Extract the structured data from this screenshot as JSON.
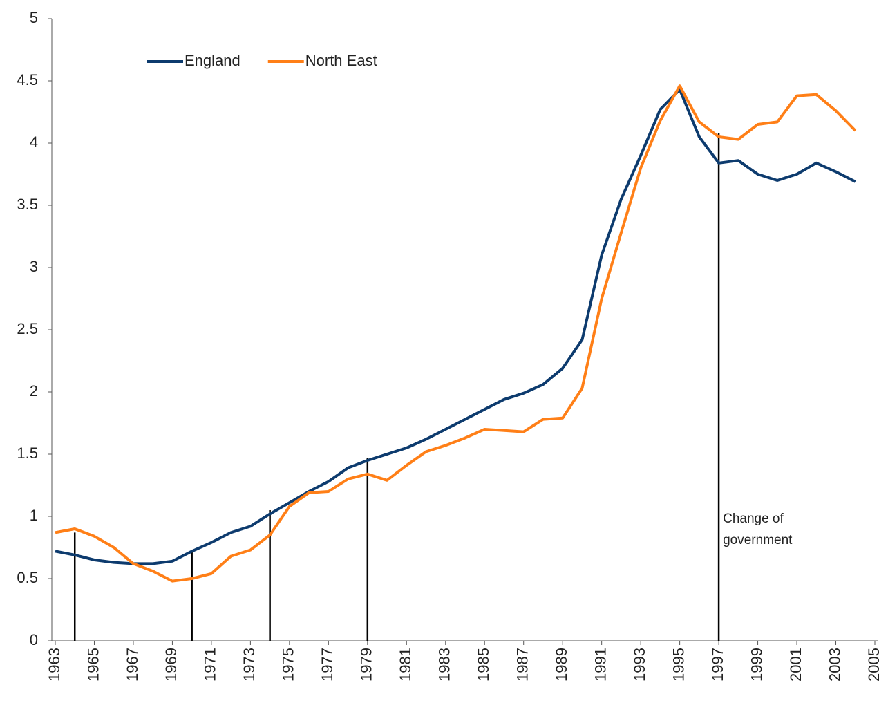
{
  "chart_data": {
    "type": "line",
    "x": [
      1963,
      1964,
      1965,
      1966,
      1967,
      1968,
      1969,
      1970,
      1971,
      1972,
      1973,
      1974,
      1975,
      1976,
      1977,
      1978,
      1979,
      1980,
      1981,
      1982,
      1983,
      1984,
      1985,
      1986,
      1987,
      1988,
      1989,
      1990,
      1991,
      1992,
      1993,
      1994,
      1995,
      1996,
      1997,
      1998,
      1999,
      2000,
      2001,
      2002,
      2003,
      2004
    ],
    "series": [
      {
        "name": "England",
        "color": "#0d3b6e",
        "values": [
          0.72,
          0.69,
          0.65,
          0.63,
          0.62,
          0.62,
          0.64,
          0.72,
          0.79,
          0.87,
          0.92,
          1.02,
          1.11,
          1.2,
          1.28,
          1.39,
          1.45,
          1.5,
          1.55,
          1.62,
          1.7,
          1.78,
          1.86,
          1.94,
          1.99,
          2.06,
          2.19,
          2.42,
          3.1,
          3.55,
          3.9,
          4.27,
          4.43,
          4.05,
          3.84,
          3.86,
          3.75,
          3.7,
          3.75,
          3.84,
          3.77,
          3.69
        ]
      },
      {
        "name": "North East",
        "color": "#ff7f17",
        "values": [
          0.87,
          0.9,
          0.84,
          0.75,
          0.62,
          0.56,
          0.48,
          0.5,
          0.54,
          0.68,
          0.73,
          0.85,
          1.08,
          1.19,
          1.2,
          1.3,
          1.34,
          1.29,
          1.41,
          1.52,
          1.57,
          1.63,
          1.7,
          1.69,
          1.68,
          1.78,
          1.79,
          2.03,
          2.75,
          3.28,
          3.8,
          4.18,
          4.46,
          4.17,
          4.05,
          4.03,
          4.15,
          4.17,
          4.38,
          4.39,
          4.26,
          4.1
        ]
      }
    ],
    "xlim": [
      1963,
      2005
    ],
    "xticks": [
      1963,
      1965,
      1967,
      1969,
      1971,
      1973,
      1975,
      1977,
      1979,
      1981,
      1983,
      1985,
      1987,
      1989,
      1991,
      1993,
      1995,
      1997,
      1999,
      2001,
      2003,
      2005
    ],
    "ylim": [
      0,
      5
    ],
    "yticks": [
      0,
      0.5,
      1,
      1.5,
      2,
      2.5,
      3,
      3.5,
      4,
      4.5,
      5
    ],
    "markers": [
      {
        "x": 1964,
        "y": 0.87
      },
      {
        "x": 1970,
        "y": 0.72
      },
      {
        "x": 1974,
        "y": 1.05
      },
      {
        "x": 1979,
        "y": 1.47
      },
      {
        "x": 1997,
        "y": 4.08
      }
    ],
    "annotation": {
      "lines": [
        "Change of",
        "government"
      ],
      "x": 1997,
      "y": 0.9
    },
    "legend": "top-left"
  }
}
